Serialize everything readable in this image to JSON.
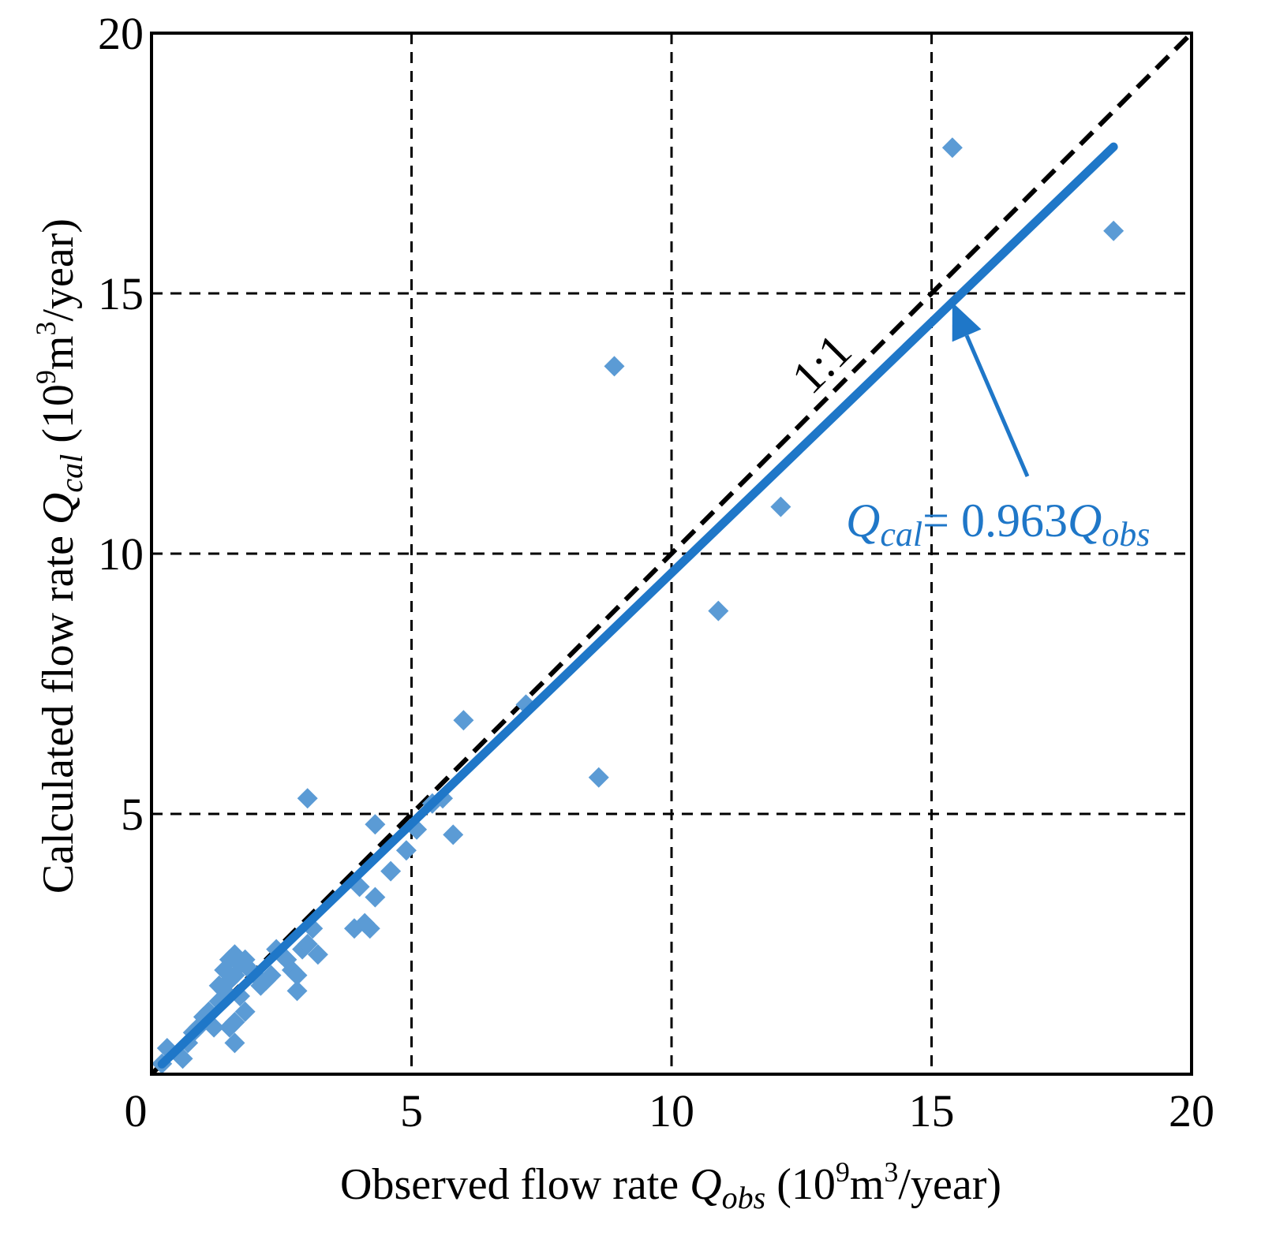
{
  "chart_data": {
    "type": "scatter",
    "xlabel": {
      "prefix": "Observed flow rate ",
      "symbol": "Q",
      "subscript": "obs",
      "unit_open": " (10",
      "unit_exp1": "9",
      "unit_mid": "m",
      "unit_exp2": "3",
      "unit_close": "/year)"
    },
    "ylabel": {
      "prefix": "Calculated flow rate ",
      "symbol": "Q",
      "subscript": "cal",
      "unit_open": " (10",
      "unit_exp1": "9",
      "unit_mid": "m",
      "unit_exp2": "3",
      "unit_close": "/year)"
    },
    "xlim": [
      0,
      20
    ],
    "ylim": [
      0,
      20
    ],
    "x_ticks": [
      "0",
      "5",
      "10",
      "15",
      "20"
    ],
    "y_ticks": [
      "5",
      "10",
      "15",
      "20"
    ],
    "tick_values": [
      0,
      5,
      10,
      15,
      20
    ],
    "grid": true,
    "colors": {
      "points": "#5b9bd5",
      "fit_line": "#1f77c8",
      "reference_line": "#000000"
    },
    "reference_line": {
      "label": "1:1",
      "slope": 1,
      "x_range": [
        0,
        20
      ]
    },
    "fit_line": {
      "slope": 0.963,
      "x_range": [
        0.2,
        18.5
      ],
      "label_lhs": "Q",
      "label_lhs_sub": "cal",
      "label_eq": "= 0.963",
      "label_rhs": "Q",
      "label_rhs_sub": "obs",
      "arrow_tip_x": 15.4
    },
    "points": [
      [
        0.2,
        0.2
      ],
      [
        0.3,
        0.5
      ],
      [
        0.5,
        0.4
      ],
      [
        0.6,
        0.3
      ],
      [
        0.7,
        0.6
      ],
      [
        0.8,
        0.8
      ],
      [
        0.9,
        0.9
      ],
      [
        1.0,
        1.1
      ],
      [
        1.1,
        1.2
      ],
      [
        1.2,
        0.9
      ],
      [
        1.3,
        1.4
      ],
      [
        1.3,
        1.7
      ],
      [
        1.4,
        1.6
      ],
      [
        1.4,
        2.0
      ],
      [
        1.5,
        1.8
      ],
      [
        1.5,
        2.2
      ],
      [
        1.5,
        0.9
      ],
      [
        1.6,
        1.0
      ],
      [
        1.6,
        0.6
      ],
      [
        1.6,
        1.9
      ],
      [
        1.6,
        2.3
      ],
      [
        1.7,
        2.1
      ],
      [
        1.7,
        1.5
      ],
      [
        1.8,
        1.2
      ],
      [
        1.8,
        2.2
      ],
      [
        1.9,
        2.0
      ],
      [
        2.0,
        1.9
      ],
      [
        2.1,
        1.7
      ],
      [
        2.2,
        1.8
      ],
      [
        2.3,
        1.9
      ],
      [
        2.4,
        2.4
      ],
      [
        2.5,
        2.3
      ],
      [
        2.6,
        2.2
      ],
      [
        2.7,
        2.0
      ],
      [
        2.8,
        1.9
      ],
      [
        2.8,
        1.6
      ],
      [
        2.9,
        2.4
      ],
      [
        3.0,
        2.5
      ],
      [
        3.1,
        2.8
      ],
      [
        3.2,
        2.3
      ],
      [
        3.0,
        5.3
      ],
      [
        3.9,
        2.8
      ],
      [
        4.0,
        3.6
      ],
      [
        4.1,
        2.9
      ],
      [
        4.2,
        2.8
      ],
      [
        4.3,
        3.4
      ],
      [
        4.3,
        4.8
      ],
      [
        4.6,
        3.9
      ],
      [
        4.9,
        4.3
      ],
      [
        5.1,
        4.7
      ],
      [
        5.4,
        5.2
      ],
      [
        5.6,
        5.3
      ],
      [
        5.8,
        4.6
      ],
      [
        6.0,
        6.8
      ],
      [
        7.2,
        7.1
      ],
      [
        8.6,
        5.7
      ],
      [
        8.9,
        13.6
      ],
      [
        10.9,
        8.9
      ],
      [
        12.1,
        10.9
      ],
      [
        15.4,
        17.8
      ],
      [
        18.5,
        16.2
      ]
    ]
  }
}
